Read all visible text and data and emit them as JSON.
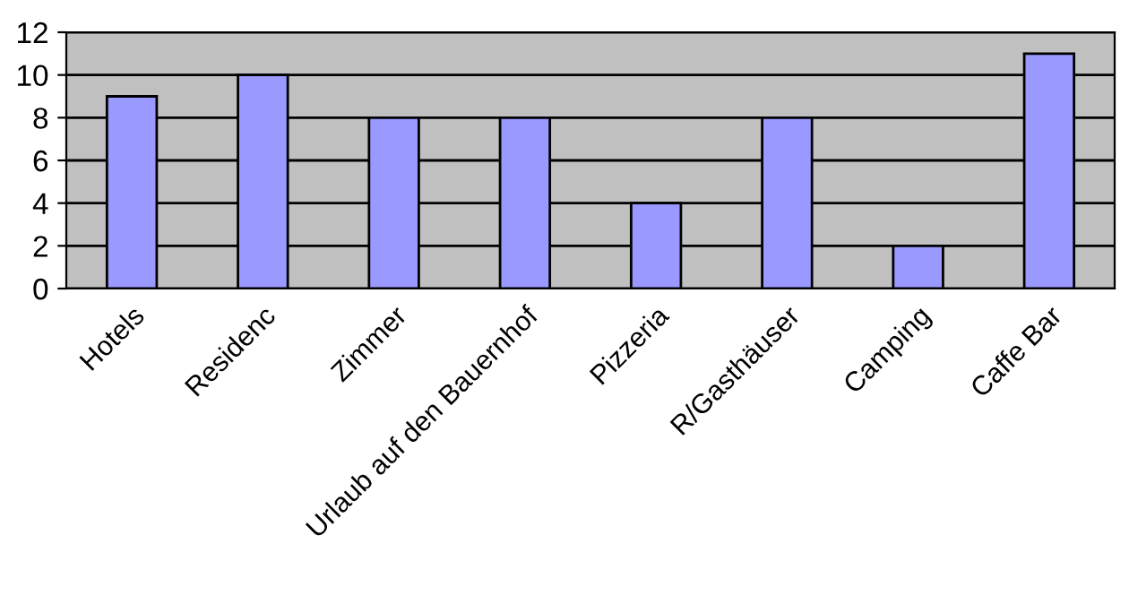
{
  "chart_data": {
    "type": "bar",
    "categories": [
      "Hotels",
      "Residenc",
      "Zimmer",
      "Urlaub auf den Bauernhof",
      "Pizzeria",
      "R/Gasthäuser",
      "Camping",
      "Caffe Bar"
    ],
    "values": [
      9,
      10,
      8,
      8,
      4,
      8,
      2,
      11
    ],
    "color": "#9999ff",
    "ylim": [
      0,
      12
    ],
    "yticks": [
      0,
      2,
      4,
      6,
      8,
      10,
      12
    ],
    "grid": "y",
    "legend": false
  }
}
